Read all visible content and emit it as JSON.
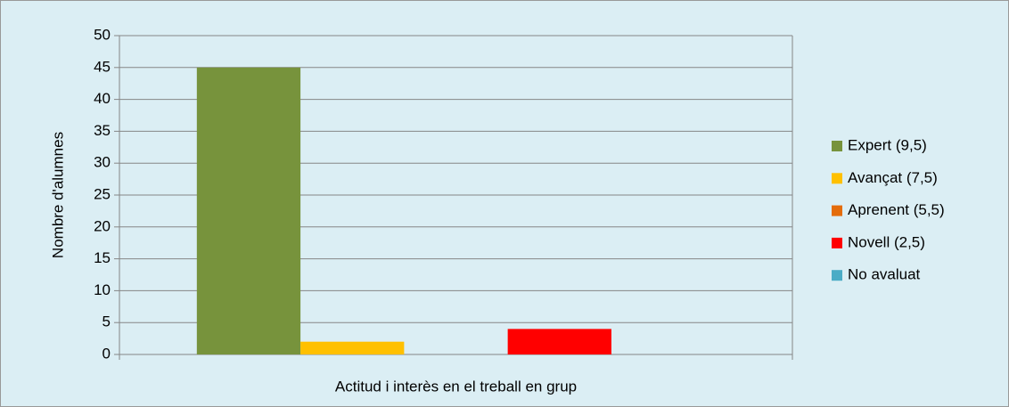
{
  "chart_data": {
    "type": "bar",
    "categories": [
      "Actitud i interès en el treball en grup"
    ],
    "y_label": "Nombre d'alumnes",
    "series": [
      {
        "name": "Expert (9,5)",
        "color": "#77933c",
        "values": [
          45
        ]
      },
      {
        "name": "Avançat (7,5)",
        "color": "#ffc000",
        "values": [
          2
        ]
      },
      {
        "name": "Aprenent (5,5)",
        "color": "#e46c0a",
        "values": [
          0
        ]
      },
      {
        "name": "Novell (2,5)",
        "color": "#ff0000",
        "values": [
          4
        ]
      },
      {
        "name": "No avaluat",
        "color": "#4bacc6",
        "values": [
          0
        ]
      }
    ],
    "ylim": [
      0,
      50
    ],
    "yticks": [
      0,
      5,
      10,
      15,
      20,
      25,
      30,
      35,
      40,
      45,
      50
    ],
    "grid": true,
    "legend": "right"
  }
}
